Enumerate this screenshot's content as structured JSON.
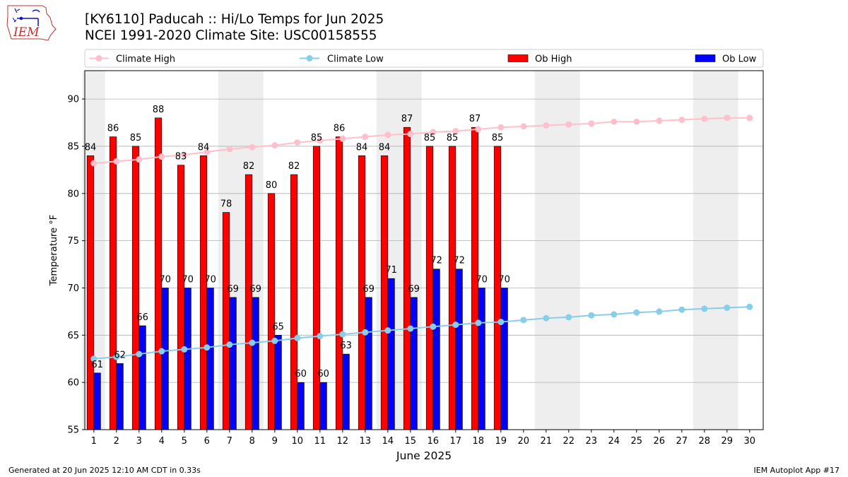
{
  "header": {
    "logo_text": "IEM",
    "title_line1": "[KY6110] Paducah :: Hi/Lo Temps for Jun 2025",
    "title_line2": "NCEI 1991-2020 Climate Site: USC00158555"
  },
  "footer": {
    "left": "Generated at 20 Jun 2025 12:10 AM CDT in 0.33s",
    "right": "IEM Autoplot App #17"
  },
  "colors": {
    "ob_high": "#ff0000",
    "ob_low": "#0000ff",
    "climate_high": "#ffc0cb",
    "climate_low": "#87ceeb",
    "weekend_band": "#eeeeee",
    "grid": "#b0b0b0"
  },
  "chart_data": {
    "type": "bar",
    "xlabel": "June 2025",
    "ylabel": "Temperature °F",
    "ylim": [
      55,
      93
    ],
    "yticks": [
      55,
      60,
      65,
      70,
      75,
      80,
      85,
      90
    ],
    "grid": "horizontal",
    "legend_position": "top",
    "days": [
      1,
      2,
      3,
      4,
      5,
      6,
      7,
      8,
      9,
      10,
      11,
      12,
      13,
      14,
      15,
      16,
      17,
      18,
      19,
      20,
      21,
      22,
      23,
      24,
      25,
      26,
      27,
      28,
      29,
      30
    ],
    "weekend_bands": [
      [
        1,
        1
      ],
      [
        7,
        8
      ],
      [
        14,
        15
      ],
      [
        21,
        22
      ],
      [
        28,
        29
      ]
    ],
    "series": [
      {
        "name": "Climate High",
        "kind": "line",
        "values": [
          83.2,
          83.4,
          83.6,
          83.9,
          84.1,
          84.4,
          84.7,
          84.9,
          85.1,
          85.4,
          85.6,
          85.8,
          86.0,
          86.2,
          86.3,
          86.5,
          86.6,
          86.8,
          87.0,
          87.1,
          87.2,
          87.3,
          87.4,
          87.6,
          87.6,
          87.7,
          87.8,
          87.9,
          88.0,
          88.0
        ]
      },
      {
        "name": "Climate Low",
        "kind": "line",
        "values": [
          62.5,
          62.7,
          63.0,
          63.3,
          63.5,
          63.7,
          64.0,
          64.2,
          64.4,
          64.7,
          64.9,
          65.1,
          65.3,
          65.5,
          65.7,
          65.9,
          66.1,
          66.3,
          66.4,
          66.6,
          66.8,
          66.9,
          67.1,
          67.2,
          67.4,
          67.5,
          67.7,
          67.8,
          67.9,
          68.0
        ]
      },
      {
        "name": "Ob High",
        "kind": "bar",
        "values": [
          84,
          86,
          85,
          88,
          83,
          84,
          78,
          82,
          80,
          82,
          85,
          86,
          84,
          84,
          87,
          85,
          85,
          87,
          85
        ]
      },
      {
        "name": "Ob Low",
        "kind": "bar",
        "values": [
          61,
          62,
          66,
          70,
          70,
          70,
          69,
          69,
          65,
          60,
          60,
          63,
          69,
          71,
          69,
          72,
          72,
          70,
          70
        ]
      }
    ]
  }
}
